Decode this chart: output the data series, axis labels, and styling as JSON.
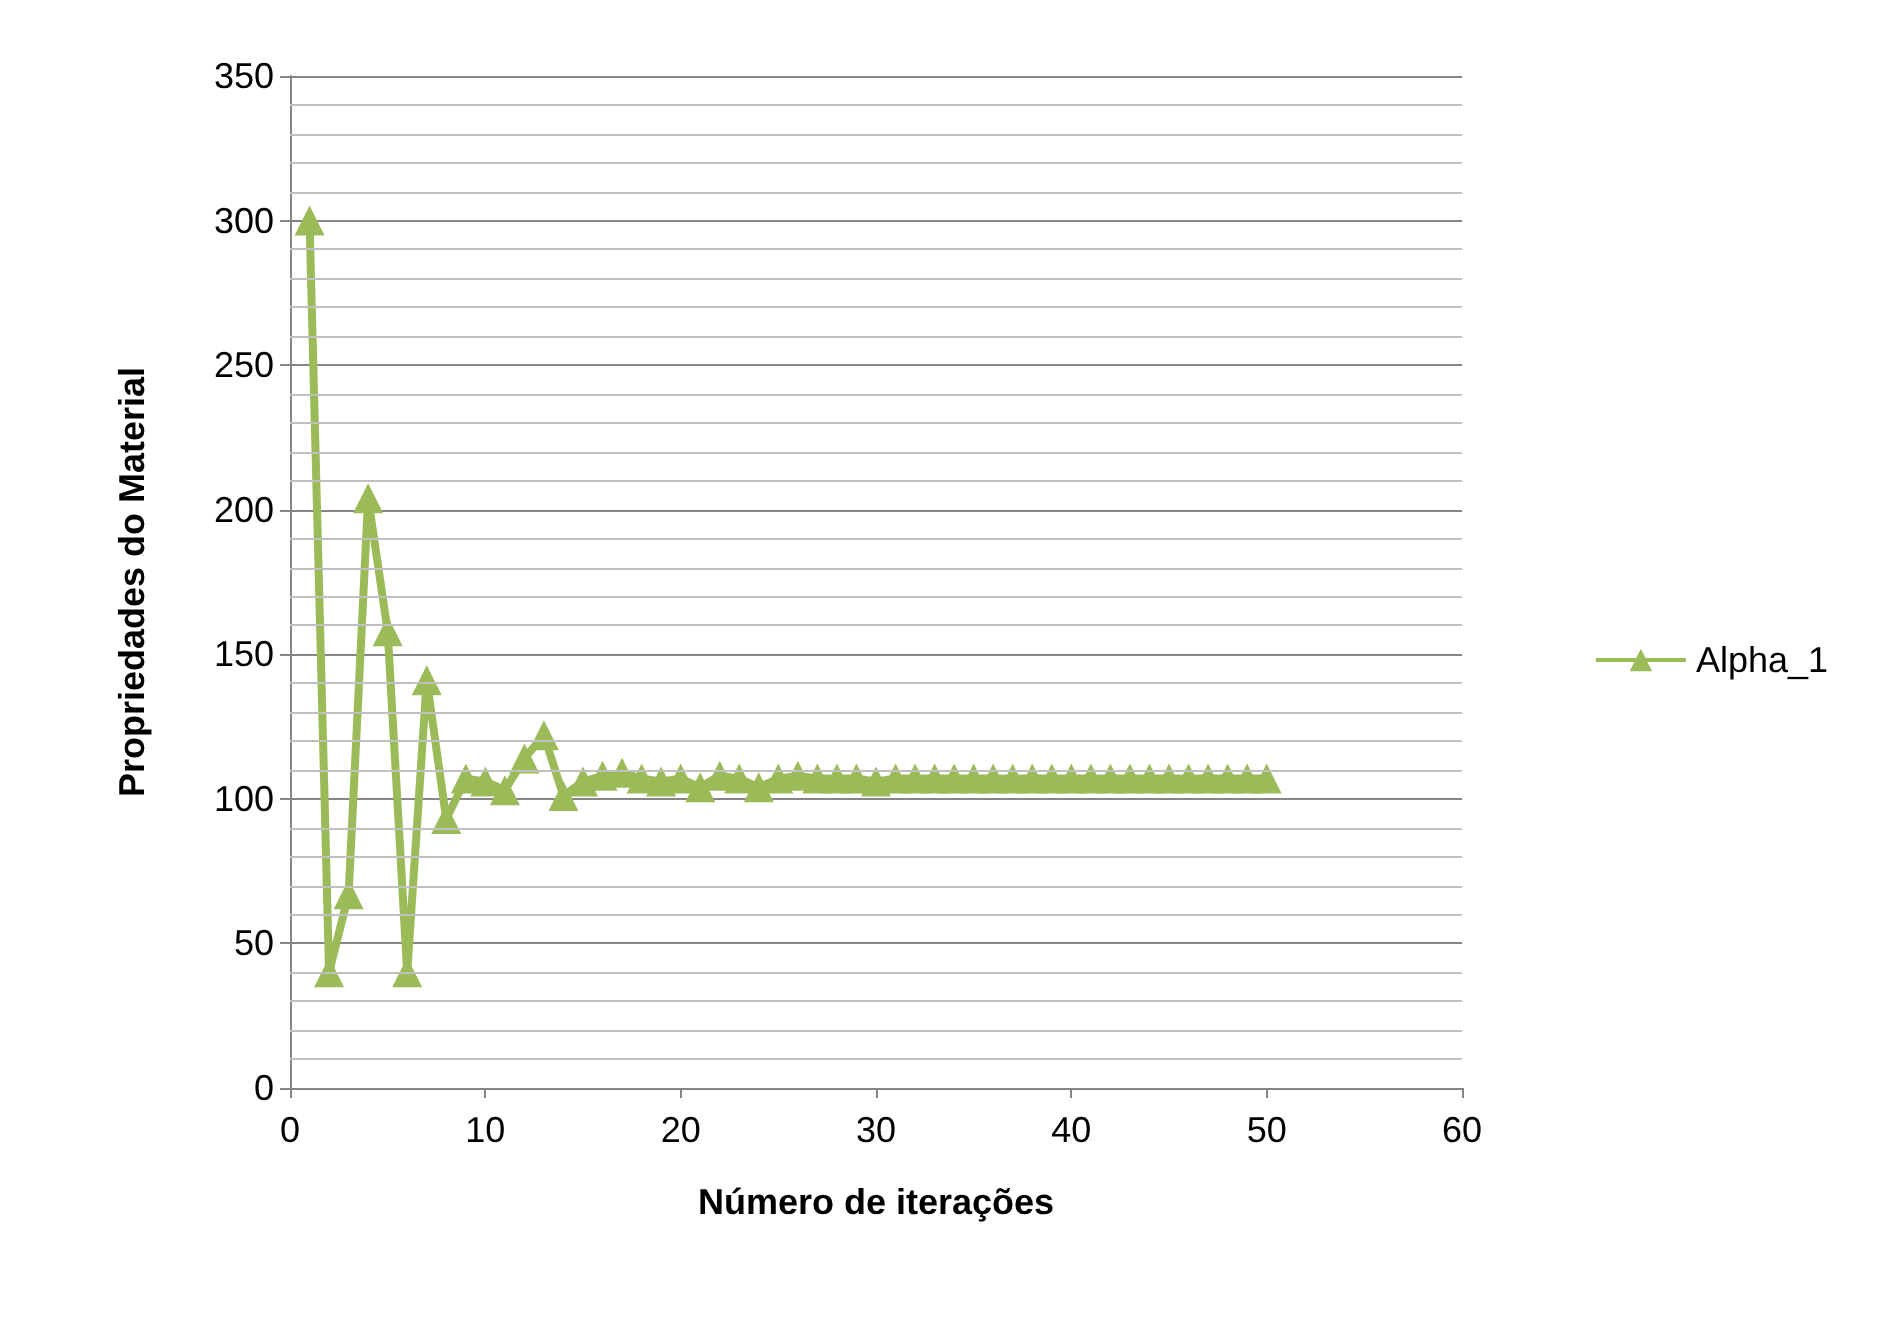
{
  "chart_data": {
    "type": "line",
    "xlabel": "Número de iterações",
    "ylabel": "Propriedades do Material",
    "x": [
      1,
      2,
      3,
      4,
      5,
      6,
      7,
      8,
      9,
      10,
      11,
      12,
      13,
      14,
      15,
      16,
      17,
      18,
      19,
      20,
      21,
      22,
      23,
      24,
      25,
      26,
      27,
      28,
      29,
      30,
      31,
      32,
      33,
      34,
      35,
      36,
      37,
      38,
      39,
      40,
      41,
      42,
      43,
      44,
      45,
      46,
      47,
      48,
      49,
      50
    ],
    "series": [
      {
        "name": "Alpha_1",
        "color": "#9bbb59",
        "values": [
          300,
          40,
          67,
          204,
          158,
          40,
          141,
          93,
          107,
          106,
          103,
          114,
          122,
          101,
          106,
          108,
          109,
          107,
          106,
          107,
          104,
          108,
          107,
          104,
          107,
          108,
          107,
          107,
          107,
          106,
          107,
          107,
          107,
          107,
          107,
          107,
          107,
          107,
          107,
          107,
          107,
          107,
          107,
          107,
          107,
          107,
          107,
          107,
          107,
          107
        ]
      }
    ],
    "xlim": [
      0,
      60
    ],
    "xticks": [
      0,
      10,
      20,
      30,
      40,
      50,
      60
    ],
    "ylim": [
      0,
      350
    ],
    "yticks": [
      0,
      {
        "value": 10,
        "label": null
      },
      {
        "value": 20,
        "label": null
      },
      {
        "value": 30,
        "label": null
      },
      {
        "value": 40,
        "label": null
      },
      50,
      {
        "value": 60,
        "label": null
      },
      {
        "value": 70,
        "label": null
      },
      {
        "value": 80,
        "label": null
      },
      {
        "value": 90,
        "label": null
      },
      100,
      {
        "value": 110,
        "label": null
      },
      {
        "value": 120,
        "label": null
      },
      {
        "value": 130,
        "label": null
      },
      {
        "value": 140,
        "label": null
      },
      150,
      {
        "value": 160,
        "label": null
      },
      {
        "value": 170,
        "label": null
      },
      {
        "value": 180,
        "label": null
      },
      {
        "value": 190,
        "label": null
      },
      200,
      {
        "value": 210,
        "label": null
      },
      {
        "value": 220,
        "label": null
      },
      {
        "value": 230,
        "label": null
      },
      {
        "value": 240,
        "label": null
      },
      250,
      {
        "value": 260,
        "label": null
      },
      {
        "value": 270,
        "label": null
      },
      {
        "value": 280,
        "label": null
      },
      {
        "value": 290,
        "label": null
      },
      300,
      {
        "value": 310,
        "label": null
      },
      {
        "value": 320,
        "label": null
      },
      {
        "value": 330,
        "label": null
      },
      {
        "value": 340,
        "label": null
      },
      350
    ],
    "grid": "y",
    "legend": "right",
    "marker": "triangle",
    "line_style": "solid"
  }
}
